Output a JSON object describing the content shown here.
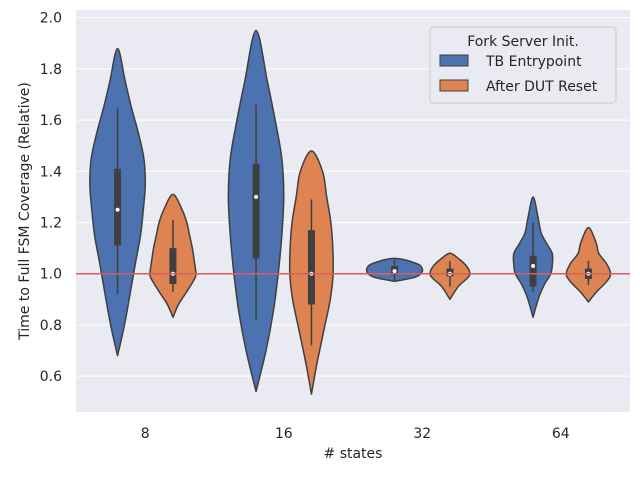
{
  "chart_data": {
    "type": "violin",
    "xlabel": "# states",
    "ylabel": "Time to Full FSM Coverage (Relative)",
    "categories": [
      "8",
      "16",
      "32",
      "64"
    ],
    "ylim": [
      0.46,
      2.03
    ],
    "yticks": [
      "0.6",
      "0.8",
      "1.0",
      "1.2",
      "1.4",
      "1.6",
      "1.8",
      "2.0"
    ],
    "yticks_values": [
      0.6,
      0.8,
      1.0,
      1.2,
      1.4,
      1.6,
      1.8,
      2.0
    ],
    "grid": true,
    "reference_line": {
      "y": 1.0,
      "color": "#d65f5f"
    },
    "legend": {
      "title": "Fork Server Init.",
      "placement": "top-right"
    },
    "series": [
      {
        "name": "TB Entrypoint",
        "color": "#4c72b0",
        "violins": [
          {
            "category": "8",
            "median": 1.25,
            "q1": 1.11,
            "q3": 1.41,
            "whisker_low": 0.92,
            "whisker_high": 1.65,
            "profile": [
              [
                0.68,
                0.0
              ],
              [
                0.8,
                0.25
              ],
              [
                0.92,
                0.45
              ],
              [
                1.05,
                0.66
              ],
              [
                1.15,
                0.83
              ],
              [
                1.25,
                0.93
              ],
              [
                1.35,
                1.0
              ],
              [
                1.45,
                0.95
              ],
              [
                1.55,
                0.75
              ],
              [
                1.65,
                0.5
              ],
              [
                1.75,
                0.28
              ],
              [
                1.88,
                0.0
              ]
            ]
          },
          {
            "category": "16",
            "median": 1.3,
            "q1": 1.06,
            "q3": 1.43,
            "whisker_low": 0.82,
            "whisker_high": 1.66,
            "profile": [
              [
                0.54,
                0.0
              ],
              [
                0.7,
                0.36
              ],
              [
                0.85,
                0.62
              ],
              [
                1.0,
                0.8
              ],
              [
                1.15,
                0.93
              ],
              [
                1.3,
                1.0
              ],
              [
                1.45,
                0.93
              ],
              [
                1.6,
                0.69
              ],
              [
                1.75,
                0.41
              ],
              [
                1.95,
                0.0
              ]
            ]
          },
          {
            "category": "32",
            "median": 1.01,
            "q1": 0.995,
            "q3": 1.03,
            "whisker_low": 0.975,
            "whisker_high": 1.055,
            "profile": [
              [
                0.97,
                0.0
              ],
              [
                0.985,
                0.7
              ],
              [
                1.0,
                0.95
              ],
              [
                1.02,
                1.0
              ],
              [
                1.04,
                0.79
              ],
              [
                1.06,
                0.0
              ]
            ]
          },
          {
            "category": "64",
            "median": 1.03,
            "q1": 0.95,
            "q3": 1.07,
            "whisker_low": 0.93,
            "whisker_high": 1.2,
            "profile": [
              [
                0.83,
                0.0
              ],
              [
                0.88,
                0.13
              ],
              [
                0.92,
                0.25
              ],
              [
                0.96,
                0.42
              ],
              [
                1.0,
                0.64
              ],
              [
                1.04,
                0.7
              ],
              [
                1.08,
                0.69
              ],
              [
                1.12,
                0.48
              ],
              [
                1.16,
                0.29
              ],
              [
                1.22,
                0.18
              ],
              [
                1.3,
                0.0
              ]
            ]
          }
        ]
      },
      {
        "name": "After DUT Reset",
        "color": "#dd8452",
        "violins": [
          {
            "category": "8",
            "median": 1.0,
            "q1": 0.96,
            "q3": 1.1,
            "whisker_low": 0.93,
            "whisker_high": 1.21,
            "profile": [
              [
                0.83,
                0.0
              ],
              [
                0.88,
                0.2
              ],
              [
                0.93,
                0.5
              ],
              [
                0.98,
                0.78
              ],
              [
                1.0,
                0.83
              ],
              [
                1.05,
                0.77
              ],
              [
                1.1,
                0.7
              ],
              [
                1.15,
                0.6
              ],
              [
                1.2,
                0.5
              ],
              [
                1.25,
                0.33
              ],
              [
                1.31,
                0.0
              ]
            ]
          },
          {
            "category": "16",
            "median": 1.0,
            "q1": 0.88,
            "q3": 1.17,
            "whisker_low": 0.72,
            "whisker_high": 1.29,
            "profile": [
              [
                0.53,
                0.0
              ],
              [
                0.65,
                0.2
              ],
              [
                0.78,
                0.45
              ],
              [
                0.9,
                0.68
              ],
              [
                1.0,
                0.78
              ],
              [
                1.1,
                0.77
              ],
              [
                1.2,
                0.7
              ],
              [
                1.3,
                0.55
              ],
              [
                1.4,
                0.4
              ],
              [
                1.48,
                0.0
              ]
            ]
          },
          {
            "category": "32",
            "median": 1.0,
            "q1": 0.99,
            "q3": 1.02,
            "whisker_low": 0.95,
            "whisker_high": 1.05,
            "profile": [
              [
                0.9,
                0.0
              ],
              [
                0.95,
                0.3
              ],
              [
                0.98,
                0.6
              ],
              [
                1.0,
                0.72
              ],
              [
                1.03,
                0.6
              ],
              [
                1.06,
                0.3
              ],
              [
                1.08,
                0.0
              ]
            ]
          },
          {
            "category": "64",
            "median": 1.0,
            "q1": 0.98,
            "q3": 1.02,
            "whisker_low": 0.955,
            "whisker_high": 1.05,
            "profile": [
              [
                0.89,
                0.0
              ],
              [
                0.93,
                0.3
              ],
              [
                0.97,
                0.66
              ],
              [
                1.0,
                0.8
              ],
              [
                1.04,
                0.65
              ],
              [
                1.08,
                0.37
              ],
              [
                1.12,
                0.28
              ],
              [
                1.18,
                0.0
              ]
            ]
          }
        ]
      }
    ]
  }
}
